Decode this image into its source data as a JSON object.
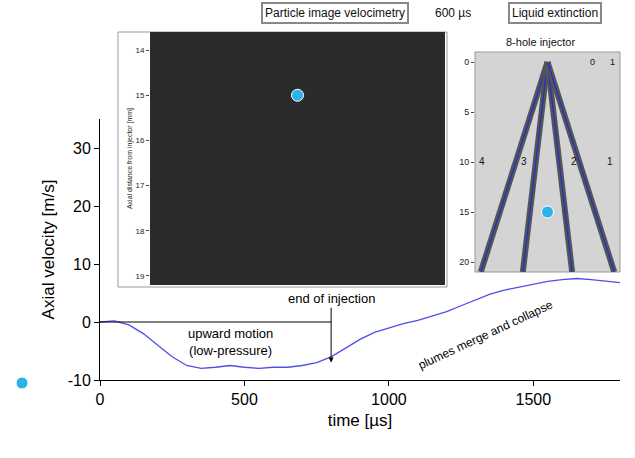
{
  "chart_data": {
    "type": "line",
    "xlabel": "time [µs]",
    "ylabel": "Axial velocity [m/s]",
    "x": [
      0,
      50,
      100,
      150,
      200,
      250,
      300,
      350,
      400,
      450,
      500,
      550,
      600,
      650,
      700,
      750,
      800,
      850,
      900,
      950,
      1000,
      1050,
      1100,
      1150,
      1200,
      1250,
      1300,
      1350,
      1400,
      1450,
      1500,
      1550,
      1600,
      1650,
      1700,
      1750,
      1800
    ],
    "values": [
      0,
      0.2,
      -0.5,
      -2,
      -4,
      -6,
      -7.5,
      -8,
      -7.8,
      -7.5,
      -7.8,
      -8,
      -7.8,
      -7.8,
      -7.5,
      -7,
      -6,
      -4.5,
      -3,
      -1.8,
      -1,
      -0.3,
      0.3,
      1,
      1.8,
      2.8,
      3.8,
      4.8,
      5.5,
      6,
      6.5,
      7,
      7.3,
      7.5,
      7.3,
      7,
      6.8
    ],
    "color": "#4f4fe6",
    "xlim": [
      0,
      1800
    ],
    "xticks": [
      0,
      500,
      1000,
      1500
    ],
    "ylim": [
      -10,
      35
    ],
    "yticks": [
      -10,
      0,
      10,
      20,
      30
    ],
    "grid": false,
    "end_of_injection": {
      "text": "end of injection",
      "x": 800,
      "y": -7,
      "text_y": 4
    },
    "annotations": [
      {
        "text": "upward motion\n(low-pressure)",
        "x": 450,
        "y": -3.5
      },
      {
        "text": "plumes merge and collapse",
        "x": 1333,
        "y": -2.2
      }
    ],
    "probe": {
      "color": "#29b5e8",
      "axial_distance_mm": 15
    },
    "gap_label": "600 µs",
    "insets": [
      {
        "title": "Particle image velocimetry",
        "ylabel": "Axial distance from injector [mm]",
        "ylim": [
          19.2,
          13.6
        ],
        "yticks": [
          14,
          15,
          16,
          17,
          18,
          19
        ]
      },
      {
        "title": "Liquid extinction",
        "subtitle": "8-hole injector",
        "ylim": [
          21,
          -1
        ],
        "yticks": [
          0,
          5,
          10,
          15,
          20
        ],
        "plume_labels": [
          4,
          3,
          2,
          1
        ],
        "plume_label_depth": 10,
        "colorbar_ticks": [
          0,
          1
        ]
      }
    ]
  }
}
